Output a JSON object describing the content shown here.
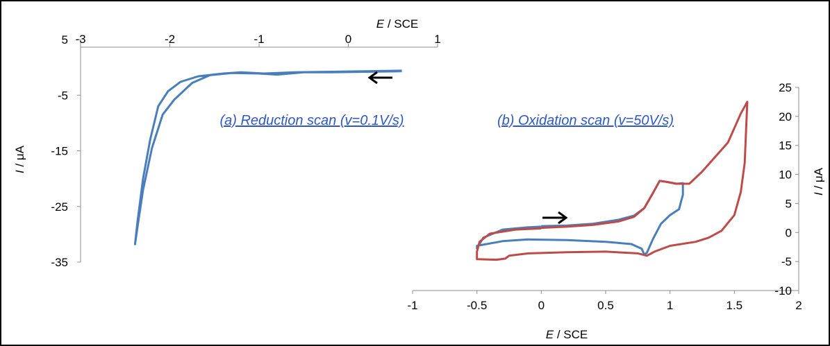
{
  "chart_data": [
    {
      "type": "line",
      "annotation": "(a) Reduction scan (v=0.1V/s)",
      "xlabel": {
        "var": "E",
        "unit": " / SCE"
      },
      "ylabel": {
        "var": "I",
        "unit": " / μA"
      },
      "xlim": [
        -3,
        1
      ],
      "ylim": [
        -35,
        5
      ],
      "x_ticks": [
        "-3",
        "-2",
        "-1",
        "0",
        "1"
      ],
      "y_ticks": [
        "5",
        "-5",
        "-15",
        "-25",
        "-35"
      ],
      "grid": false,
      "scan_direction": "left",
      "series": [
        {
          "color": "#4a7ebb",
          "points": [
            [
              0.6,
              -0.7
            ],
            [
              0.2,
              -0.8
            ],
            [
              -0.2,
              -0.9
            ],
            [
              -0.5,
              -0.9
            ],
            [
              -0.8,
              -1.3
            ],
            [
              -1.0,
              -1.1
            ],
            [
              -1.3,
              -1.0
            ],
            [
              -1.55,
              -1.4
            ],
            [
              -1.75,
              -2.8
            ],
            [
              -1.95,
              -5.8
            ],
            [
              -2.08,
              -8.5
            ],
            [
              -2.2,
              -14.5
            ],
            [
              -2.3,
              -22.0
            ],
            [
              -2.36,
              -28.5
            ],
            [
              -2.39,
              -31.8
            ],
            [
              -2.36,
              -27.5
            ],
            [
              -2.3,
              -20.0
            ],
            [
              -2.22,
              -13.0
            ],
            [
              -2.13,
              -7.0
            ],
            [
              -2.02,
              -4.3
            ],
            [
              -1.88,
              -2.6
            ],
            [
              -1.68,
              -1.6
            ],
            [
              -1.4,
              -1.1
            ],
            [
              -1.2,
              -0.9
            ],
            [
              -0.95,
              -1.1
            ],
            [
              -0.6,
              -0.9
            ],
            [
              -0.2,
              -0.8
            ],
            [
              0.2,
              -0.7
            ],
            [
              0.6,
              -0.6
            ]
          ]
        }
      ]
    },
    {
      "type": "line",
      "annotation": "(b) Oxidation scan (v=50V/s)",
      "xlabel": {
        "var": "E",
        "unit": " / SCE"
      },
      "ylabel": {
        "var": "I",
        "unit": " / μA"
      },
      "xlim": [
        -1,
        2
      ],
      "ylim": [
        -10,
        25
      ],
      "x_ticks": [
        "-1",
        "-0.5",
        "0",
        "0.5",
        "1",
        "1.5",
        "2"
      ],
      "y_ticks": [
        "25",
        "20",
        "15",
        "10",
        "5",
        "0",
        "-5",
        "-10"
      ],
      "grid": false,
      "scan_direction": "right",
      "series": [
        {
          "color": "#4a7ebb",
          "points": [
            [
              0.0,
              1.1
            ],
            [
              0.2,
              1.2
            ],
            [
              0.4,
              1.5
            ],
            [
              0.6,
              2.2
            ],
            [
              0.72,
              2.9
            ],
            [
              0.8,
              4.2
            ],
            [
              0.86,
              6.5
            ],
            [
              0.92,
              8.9
            ],
            [
              0.98,
              8.7
            ],
            [
              1.05,
              8.4
            ],
            [
              1.1,
              8.5
            ],
            [
              1.1,
              6.5
            ],
            [
              1.07,
              4.0
            ],
            [
              1.0,
              3.0
            ],
            [
              0.93,
              1.5
            ],
            [
              0.87,
              -1.0
            ],
            [
              0.82,
              -3.5
            ],
            [
              0.8,
              -3.8
            ],
            [
              0.78,
              -2.8
            ],
            [
              0.7,
              -2.0
            ],
            [
              0.5,
              -1.6
            ],
            [
              0.2,
              -1.3
            ],
            [
              -0.1,
              -1.2
            ],
            [
              -0.3,
              -1.5
            ],
            [
              -0.5,
              -2.3
            ],
            [
              -0.5,
              -2.7
            ],
            [
              -0.45,
              -0.9
            ],
            [
              -0.3,
              0.5
            ],
            [
              -0.1,
              0.9
            ],
            [
              0.0,
              1.0
            ]
          ]
        },
        {
          "color": "#be4b48",
          "points": [
            [
              0.0,
              0.8
            ],
            [
              0.2,
              1.0
            ],
            [
              0.4,
              1.3
            ],
            [
              0.6,
              1.9
            ],
            [
              0.72,
              2.7
            ],
            [
              0.8,
              4.2
            ],
            [
              0.86,
              6.5
            ],
            [
              0.92,
              8.9
            ],
            [
              0.98,
              8.7
            ],
            [
              1.05,
              8.4
            ],
            [
              1.15,
              8.4
            ],
            [
              1.25,
              10.5
            ],
            [
              1.35,
              13.0
            ],
            [
              1.45,
              15.5
            ],
            [
              1.55,
              20.5
            ],
            [
              1.6,
              22.5
            ],
            [
              1.58,
              12.0
            ],
            [
              1.55,
              7.0
            ],
            [
              1.5,
              3.0
            ],
            [
              1.4,
              0.3
            ],
            [
              1.3,
              -0.9
            ],
            [
              1.2,
              -1.6
            ],
            [
              1.0,
              -2.3
            ],
            [
              0.88,
              -3.3
            ],
            [
              0.82,
              -4.0
            ],
            [
              0.75,
              -3.6
            ],
            [
              0.5,
              -3.3
            ],
            [
              0.2,
              -3.4
            ],
            [
              -0.1,
              -3.6
            ],
            [
              -0.25,
              -4.0
            ],
            [
              -0.28,
              -4.5
            ],
            [
              -0.35,
              -4.7
            ],
            [
              -0.5,
              -4.6
            ],
            [
              -0.5,
              -3.3
            ],
            [
              -0.48,
              -1.6
            ],
            [
              -0.4,
              -0.2
            ],
            [
              -0.2,
              0.5
            ],
            [
              0.0,
              0.7
            ]
          ]
        }
      ]
    }
  ]
}
